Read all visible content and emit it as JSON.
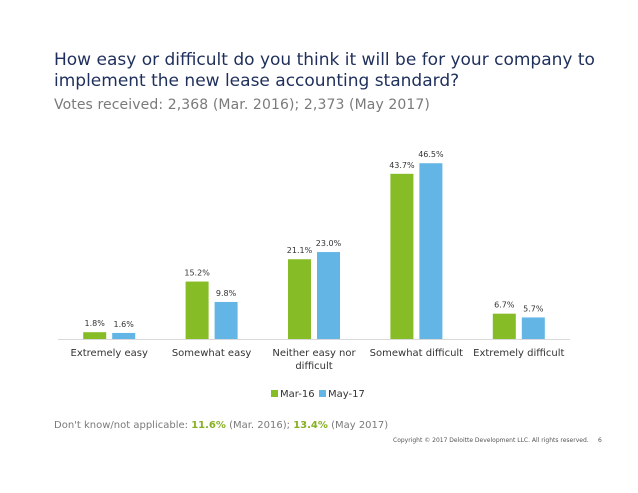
{
  "header": {
    "title": "How easy or difficult do you think it will be for your company to implement the new lease accounting standard?",
    "subtitle": "Votes received: 2,368 (Mar. 2016); 2,373 (May 2017)"
  },
  "colors": {
    "series1": "#86bc25",
    "series2": "#62b5e5",
    "text": "#333333",
    "axis": "#d9d9d9"
  },
  "chart_data": {
    "type": "bar",
    "categories": [
      "Extremely easy",
      "Somewhat easy",
      "Neither easy nor difficult",
      "Somewhat difficult",
      "Extremely difficult"
    ],
    "category_lines": [
      [
        "Extremely easy"
      ],
      [
        "Somewhat easy"
      ],
      [
        "Neither easy nor",
        "difficult"
      ],
      [
        "Somewhat difficult"
      ],
      [
        "Extremely difficult"
      ]
    ],
    "series": [
      {
        "name": "Mar-16",
        "values": [
          1.8,
          15.2,
          21.1,
          43.7,
          6.7
        ],
        "labels": [
          "1.8%",
          "15.2%",
          "21.1%",
          "43.7%",
          "6.7%"
        ]
      },
      {
        "name": "May-17",
        "values": [
          1.6,
          9.8,
          23.0,
          46.5,
          5.7
        ],
        "labels": [
          "1.6%",
          "9.8%",
          "23.0%",
          "46.5%",
          "5.7%"
        ]
      }
    ],
    "ylim": [
      0,
      50
    ],
    "legend": "bottom",
    "grid": false
  },
  "footnote": {
    "prefix": "Don't know/not applicable: ",
    "value1": "11.6%",
    "mid1": " (Mar. 2016); ",
    "value2": "13.4%",
    "suffix": " (May 2017)"
  },
  "footer": {
    "copyright": "Copyright © 2017 Deloitte Development LLC. All rights reserved.",
    "page": "6"
  }
}
